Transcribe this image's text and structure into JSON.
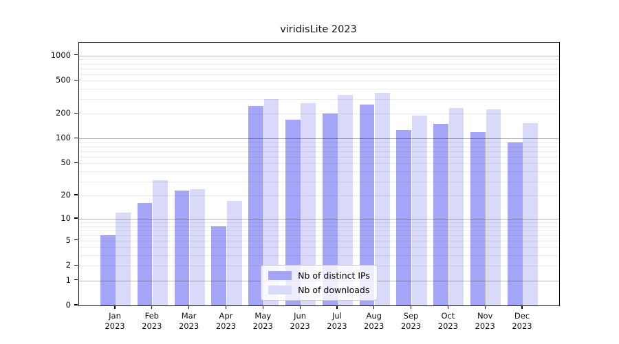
{
  "title": "viridisLite 2023",
  "colors": {
    "distinct_ips_bar": "#a5a5f7",
    "downloads_bar": "#d9d9f9",
    "grid_major": "rgba(0,0,0,0.30)",
    "grid_minor": "rgba(0,0,0,0.07)",
    "axis": "#000000",
    "background": "#ffffff"
  },
  "legend": {
    "entries": [
      {
        "label": "Nb of distinct IPs",
        "swatch": "#a5a5f7"
      },
      {
        "label": "Nb of downloads",
        "swatch": "#d9d9f9"
      }
    ],
    "position": "lower center"
  },
  "chart_data": {
    "type": "bar",
    "title": "viridisLite 2023",
    "categories": [
      {
        "month": "Jan",
        "year": "2023"
      },
      {
        "month": "Feb",
        "year": "2023"
      },
      {
        "month": "Mar",
        "year": "2023"
      },
      {
        "month": "Apr",
        "year": "2023"
      },
      {
        "month": "May",
        "year": "2023"
      },
      {
        "month": "Jun",
        "year": "2023"
      },
      {
        "month": "Jul",
        "year": "2023"
      },
      {
        "month": "Aug",
        "year": "2023"
      },
      {
        "month": "Sep",
        "year": "2023"
      },
      {
        "month": "Oct",
        "year": "2023"
      },
      {
        "month": "Nov",
        "year": "2023"
      },
      {
        "month": "Dec",
        "year": "2023"
      }
    ],
    "series": [
      {
        "name": "Nb of distinct IPs",
        "color": "#a5a5f7",
        "values": [
          6,
          16,
          23,
          8,
          250,
          170,
          200,
          260,
          127,
          150,
          120,
          90
        ]
      },
      {
        "name": "Nb of downloads",
        "color": "#d9d9f9",
        "values": [
          12,
          31,
          24,
          17,
          300,
          270,
          335,
          355,
          190,
          232,
          225,
          155
        ]
      }
    ],
    "xlabel": "",
    "ylabel": "",
    "yscale": "log1p",
    "ylim": [
      0,
      1430
    ],
    "yticks": [
      1000,
      500,
      200,
      100,
      50,
      20,
      10,
      5,
      2,
      1,
      0
    ],
    "grid_major_values": [
      1,
      10,
      100,
      1000
    ],
    "grid_minor_values": [
      2,
      3,
      4,
      5,
      6,
      7,
      8,
      9,
      20,
      30,
      40,
      50,
      60,
      70,
      80,
      90,
      200,
      300,
      400,
      500,
      600,
      700,
      800,
      900
    ],
    "legend_position": "lower center",
    "grid": "on"
  }
}
